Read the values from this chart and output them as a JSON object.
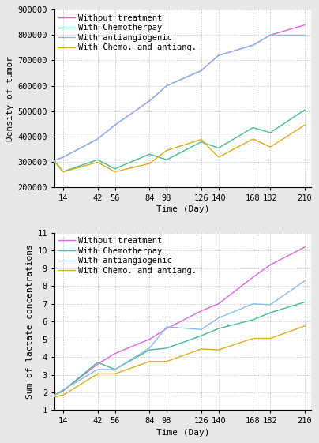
{
  "x_ticks": [
    14,
    42,
    56,
    84,
    98,
    126,
    140,
    168,
    182,
    210
  ],
  "xlim": [
    7,
    215
  ],
  "top_chart": {
    "ylabel": "Density of tumor",
    "xlabel": "Time (Day)",
    "ylim": [
      200000,
      900000
    ],
    "yticks": [
      200000,
      300000,
      400000,
      500000,
      600000,
      700000,
      800000,
      900000
    ],
    "series": {
      "without_treatment": {
        "label": "Without treatment",
        "color": "#dd66dd",
        "x": [
          7,
          14,
          42,
          56,
          84,
          98,
          126,
          140,
          168,
          182,
          210
        ],
        "y": [
          305000,
          318000,
          390000,
          445000,
          540000,
          600000,
          660000,
          720000,
          760000,
          800000,
          840000
        ]
      },
      "with_chemo": {
        "label": "With Chemotherpay",
        "color": "#44bb88",
        "x": [
          7,
          14,
          42,
          56,
          84,
          98,
          126,
          140,
          168,
          182,
          210
        ],
        "y": [
          303000,
          261000,
          308000,
          272000,
          330000,
          308000,
          378000,
          354000,
          435000,
          415000,
          505000
        ]
      },
      "with_antiang": {
        "label": "With antiangiogenic",
        "color": "#88bbee",
        "x": [
          7,
          14,
          42,
          56,
          84,
          98,
          126,
          140,
          168,
          182,
          210
        ],
        "y": [
          305000,
          318000,
          390000,
          445000,
          540000,
          600000,
          660000,
          720000,
          760000,
          800000,
          800000
        ]
      },
      "with_both": {
        "label": "With Chemo. and antiang.",
        "color": "#ddaa22",
        "x": [
          7,
          14,
          42,
          56,
          84,
          98,
          126,
          140,
          168,
          182,
          210
        ],
        "y": [
          300000,
          260000,
          298000,
          260000,
          293000,
          345000,
          388000,
          318000,
          390000,
          358000,
          445000
        ]
      }
    }
  },
  "bottom_chart": {
    "ylabel": "Sum of lactate concentrations",
    "xlabel": "Time (Day)",
    "ylim": [
      1,
      11
    ],
    "yticks": [
      1,
      2,
      3,
      4,
      5,
      6,
      7,
      8,
      9,
      10,
      11
    ],
    "series": {
      "without_treatment": {
        "label": "Without treatment",
        "color": "#dd66dd",
        "x": [
          7,
          14,
          42,
          56,
          84,
          98,
          126,
          140,
          168,
          182,
          210
        ],
        "y": [
          1.85,
          2.1,
          3.6,
          4.2,
          5.0,
          5.6,
          6.6,
          7.0,
          8.5,
          9.2,
          10.2
        ]
      },
      "with_chemo": {
        "label": "With Chemotherpay",
        "color": "#44bb88",
        "x": [
          7,
          14,
          42,
          56,
          84,
          98,
          126,
          140,
          168,
          182,
          210
        ],
        "y": [
          1.85,
          2.1,
          3.7,
          3.3,
          4.4,
          4.5,
          5.2,
          5.6,
          6.1,
          6.5,
          7.1
        ]
      },
      "with_antiang": {
        "label": "With antiangiogenic",
        "color": "#88bbee",
        "x": [
          7,
          14,
          42,
          56,
          84,
          98,
          126,
          140,
          168,
          182,
          210
        ],
        "y": [
          1.85,
          2.15,
          3.3,
          3.3,
          4.5,
          5.7,
          5.55,
          6.2,
          7.0,
          6.95,
          8.3
        ]
      },
      "with_both": {
        "label": "With Chemo. and antiang.",
        "color": "#ddaa22",
        "x": [
          7,
          14,
          42,
          56,
          84,
          98,
          126,
          140,
          168,
          182,
          210
        ],
        "y": [
          1.75,
          1.85,
          3.05,
          3.05,
          3.75,
          3.75,
          4.45,
          4.4,
          5.05,
          5.05,
          5.75
        ]
      }
    }
  },
  "bg_color": "#e8e8e8",
  "plot_bg_color": "#ffffff",
  "grid_color": "#bbbbbb",
  "legend_fontsize": 7.5,
  "axis_label_fontsize": 8,
  "tick_fontsize": 7.5,
  "line_width": 1.0
}
